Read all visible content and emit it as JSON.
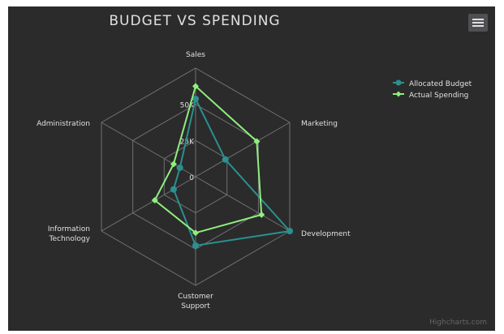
{
  "chart_data": {
    "type": "radar",
    "title": "BUDGET VS SPENDING",
    "categories": [
      "Sales",
      "Marketing",
      "Development",
      "Customer Support",
      "Information Technology",
      "Administration"
    ],
    "category_lines": [
      [
        "Sales"
      ],
      [
        "Marketing"
      ],
      [
        "Development"
      ],
      [
        "Customer",
        "Support"
      ],
      [
        "Information",
        "Technology"
      ],
      [
        "Administration"
      ]
    ],
    "radial_ticks": [
      "0",
      "25K",
      "50K"
    ],
    "rmax": 60000,
    "grid": "polygon",
    "legend_position": "top-right",
    "series": [
      {
        "name": "Allocated Budget",
        "color": "#2b908f",
        "values": [
          43000,
          19000,
          60000,
          38000,
          14000,
          10000
        ]
      },
      {
        "name": "Actual Spending",
        "color": "#90ee7e",
        "values": [
          50000,
          39000,
          42000,
          31000,
          26000,
          14000
        ]
      }
    ]
  },
  "credits": "Highcharts.com",
  "menu_icon": "hamburger-menu-icon"
}
